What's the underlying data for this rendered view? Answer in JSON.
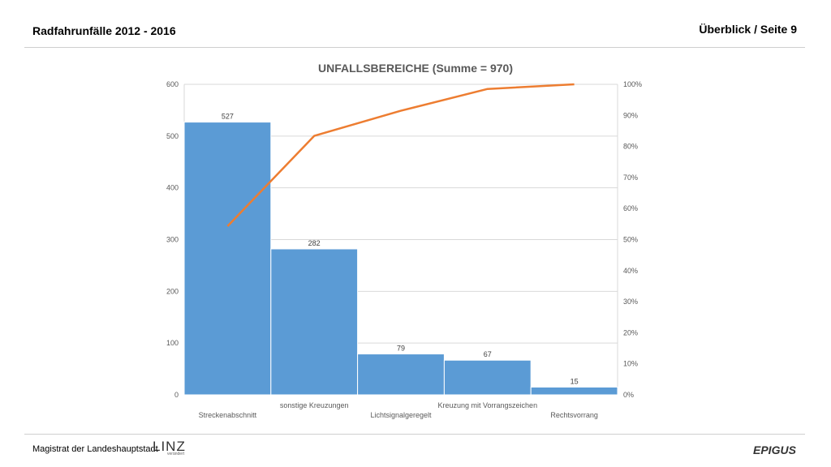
{
  "header": {
    "title": "Radfahrunfälle 2012 - 2016",
    "page": "Überblick / Seite 9"
  },
  "footer": {
    "org": "Magistrat der Landeshauptstadt",
    "logo_text": "LINZ",
    "logo_sub": "verändert",
    "partner_logo": "EPIGUS"
  },
  "chart_data": {
    "type": "bar",
    "title": "UNFALLSBEREICHE (Summe = 970)",
    "categories": [
      "Streckenabschnitt",
      "sonstige Kreuzungen",
      "Lichtsignalgeregelt",
      "Kreuzung mit Vorrangszeichen",
      "Rechtsvorrang"
    ],
    "series": [
      {
        "values": [
          527,
          282,
          79,
          67,
          15
        ],
        "color": "#5b9bd5"
      },
      {
        "type": "line",
        "axis": "right",
        "values": [
          54.3,
          83.4,
          91.5,
          98.5,
          100
        ],
        "color": "#ed7d31"
      }
    ],
    "ylim": [
      0,
      600
    ],
    "yticks": [
      "0",
      "100",
      "200",
      "300",
      "400",
      "500",
      "600"
    ],
    "y2lim": [
      0,
      100
    ],
    "y2ticks": [
      "0%",
      "10%",
      "20%",
      "30%",
      "40%",
      "50%",
      "60%",
      "70%",
      "80%",
      "90%",
      "100%"
    ],
    "data_labels": [
      "527",
      "282",
      "79",
      "67",
      "15"
    ],
    "grid": true,
    "legend": "none"
  }
}
